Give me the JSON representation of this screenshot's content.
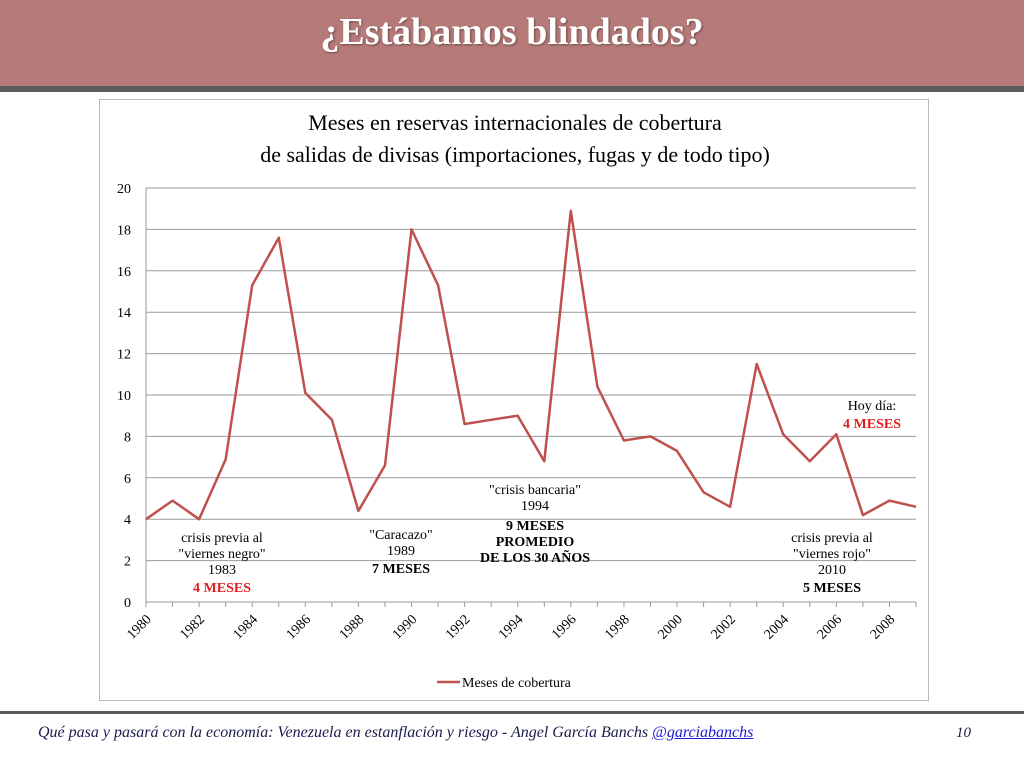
{
  "slide": {
    "title": "¿Estábamos blindados?",
    "footer": "Qué pasa y pasará con la economía: Venezuela en estanflación y riesgo - Angel García Banchs ",
    "footer_link": "@garciabanchs",
    "page_number": "10"
  },
  "chart_data": {
    "type": "line",
    "title_lines": [
      "Meses en reservas internacionales de cobertura",
      "de salidas de divisas (importaciones, fugas y de todo tipo)"
    ],
    "xlabel": "",
    "ylabel": "",
    "ylim": [
      0,
      20
    ],
    "yticks": [
      "0",
      "2",
      "4",
      "6",
      "8",
      "10",
      "12",
      "14",
      "16",
      "18",
      "20"
    ],
    "xlim": [
      1980,
      2009
    ],
    "xticks": [
      "1980",
      "1982",
      "1984",
      "1986",
      "1988",
      "1990",
      "1992",
      "1994",
      "1996",
      "1998",
      "2000",
      "2002",
      "2004",
      "2006",
      "2008"
    ],
    "grid": true,
    "legend_position": "bottom",
    "series": [
      {
        "name": "Meses de cobertura",
        "color": "#c0504d",
        "x": [
          1980,
          1981,
          1982,
          1983,
          1984,
          1985,
          1986,
          1987,
          1988,
          1989,
          1990,
          1991,
          1992,
          1993,
          1994,
          1995,
          1996,
          1997,
          1998,
          1999,
          2000,
          2001,
          2002,
          2003,
          2004,
          2005,
          2006,
          2007,
          2008,
          2009
        ],
        "values": [
          4.0,
          4.9,
          4.0,
          6.9,
          15.3,
          17.6,
          10.1,
          8.8,
          4.4,
          6.6,
          18.0,
          15.3,
          8.6,
          8.8,
          9.0,
          6.8,
          18.9,
          10.4,
          7.8,
          8.0,
          7.3,
          5.3,
          4.6,
          11.5,
          8.1,
          6.8,
          8.1,
          4.2,
          4.9,
          4.6
        ]
      }
    ],
    "annotations": [
      {
        "lines": [
          "crisis previa al",
          "\"viernes negro\"",
          "1983"
        ],
        "highlight": "4  MESES",
        "highlight_color": "#e01f1f"
      },
      {
        "lines": [
          "\"Caracazo\"",
          "1989"
        ],
        "highlight": "7  MESES",
        "highlight_color": "#000000"
      },
      {
        "lines": [
          "\"crisis bancaria\"",
          "1994"
        ],
        "bold_lines": [
          "9  MESES",
          "PROMEDIO",
          "DE LOS 30 AÑOS"
        ]
      },
      {
        "lines": [
          "crisis previa al",
          "\"viernes rojo\"",
          "2010"
        ],
        "highlight": "5  MESES",
        "highlight_color": "#000000"
      },
      {
        "lines": [
          "Hoy día:"
        ],
        "highlight": "4  MESES",
        "highlight_color": "#e01f1f"
      }
    ]
  }
}
